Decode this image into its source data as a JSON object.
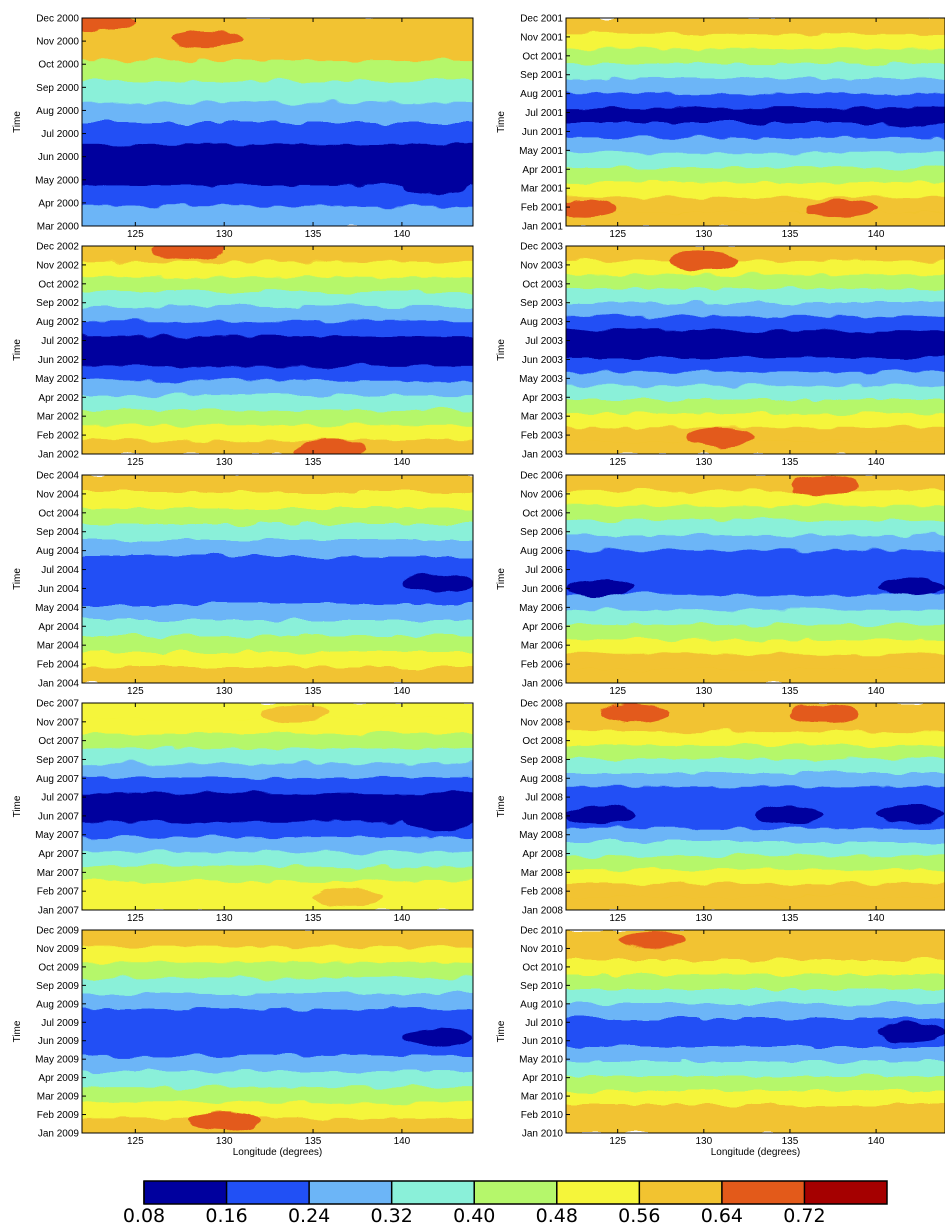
{
  "chart_data": {
    "type": "heatmap",
    "description": "Ten contour panels of a value against Longitude (x) and Time (y); discrete colour classes.",
    "xlim": [
      122,
      144
    ],
    "xticks": [
      125,
      130,
      135,
      140
    ],
    "x_label_bottom_row": "Longitude (degrees)",
    "ylabel": "Time",
    "colorbar": {
      "levels": [
        0.08,
        0.16,
        0.24,
        0.32,
        0.4,
        0.48,
        0.56,
        0.64,
        0.72
      ],
      "tick_labels": [
        "0.08",
        "0.16",
        "0.24",
        "0.32",
        "0.40",
        "0.48",
        "0.56",
        "0.64",
        "0.72"
      ],
      "colors": [
        "#00009e",
        "#2150f5",
        "#6cb5f7",
        "#8af0d9",
        "#b5f76b",
        "#f5f53a",
        "#f2c330",
        "#e35a1a",
        "#a50000"
      ]
    },
    "panels": [
      {
        "year": "2000",
        "ylabels": [
          "Mar 2000",
          "Apr 2000",
          "May 2000",
          "Jun 2000",
          "Jul 2000",
          "Aug 2000",
          "Sep 2000",
          "Oct 2000",
          "Nov 2000",
          "Dec 2000"
        ],
        "xlabel": "",
        "band_values": [
          0.28,
          0.2,
          0.12,
          0.12,
          0.2,
          0.28,
          0.36,
          0.44,
          0.6,
          0.6
        ],
        "blobs": [
          {
            "lon": 129,
            "t": 0.9,
            "v": 0.68
          },
          {
            "lon": 142,
            "t": 0.2,
            "v": 0.12
          },
          {
            "lon": 123,
            "t": 0.98,
            "v": 0.68
          }
        ]
      },
      {
        "year": "2001",
        "ylabels": [
          "Jan 2001",
          "Feb 2001",
          "Mar 2001",
          "Apr 2001",
          "May 2001",
          "Jun 2001",
          "Jul 2001",
          "Aug 2001",
          "Sep 2001",
          "Oct 2001",
          "Nov 2001",
          "Dec 2001"
        ],
        "xlabel": "",
        "band_values": [
          0.6,
          0.6,
          0.52,
          0.44,
          0.36,
          0.28,
          0.2,
          0.12,
          0.2,
          0.28,
          0.36,
          0.44,
          0.52,
          0.6
        ],
        "blobs": [
          {
            "lon": 123,
            "t": 0.08,
            "v": 0.68
          },
          {
            "lon": 138,
            "t": 0.08,
            "v": 0.68
          },
          {
            "lon": 142,
            "t": 0.52,
            "v": 0.12
          }
        ]
      },
      {
        "year": "2002",
        "ylabels": [
          "Jan 2002",
          "Feb 2002",
          "Mar 2002",
          "Apr 2002",
          "May 2002",
          "Jun 2002",
          "Jul 2002",
          "Aug 2002",
          "Sep 2002",
          "Oct 2002",
          "Nov 2002",
          "Dec 2002"
        ],
        "xlabel": "",
        "band_values": [
          0.6,
          0.52,
          0.44,
          0.36,
          0.28,
          0.2,
          0.12,
          0.12,
          0.2,
          0.28,
          0.36,
          0.44,
          0.52,
          0.6
        ],
        "blobs": [
          {
            "lon": 136,
            "t": 0.02,
            "v": 0.68
          },
          {
            "lon": 128,
            "t": 0.98,
            "v": 0.68
          }
        ]
      },
      {
        "year": "2003",
        "ylabels": [
          "Jan 2003",
          "Feb 2003",
          "Mar 2003",
          "Apr 2003",
          "May 2003",
          "Jun 2003",
          "Jul 2003",
          "Aug 2003",
          "Sep 2003",
          "Oct 2003",
          "Nov 2003",
          "Dec 2003"
        ],
        "xlabel": "",
        "band_values": [
          0.6,
          0.6,
          0.52,
          0.44,
          0.36,
          0.28,
          0.2,
          0.12,
          0.12,
          0.2,
          0.28,
          0.36,
          0.44,
          0.52,
          0.6
        ],
        "blobs": [
          {
            "lon": 131,
            "t": 0.08,
            "v": 0.68
          },
          {
            "lon": 130,
            "t": 0.93,
            "v": 0.68
          }
        ]
      },
      {
        "year": "2004",
        "ylabels": [
          "Jan 2004",
          "Feb 2004",
          "Mar 2004",
          "Apr 2004",
          "May 2004",
          "Jun 2004",
          "Jul 2004",
          "Aug 2004",
          "Sep 2004",
          "Oct 2004",
          "Nov 2004",
          "Dec 2004"
        ],
        "xlabel": "",
        "band_values": [
          0.6,
          0.52,
          0.44,
          0.36,
          0.28,
          0.2,
          0.2,
          0.2,
          0.28,
          0.36,
          0.44,
          0.52,
          0.6
        ],
        "blobs": [
          {
            "lon": 142,
            "t": 0.48,
            "v": 0.12
          }
        ]
      },
      {
        "year": "2006",
        "ylabels": [
          "Jan 2006",
          "Feb 2006",
          "Mar 2006",
          "Apr 2006",
          "May 2006",
          "Jun 2006",
          "Jul 2006",
          "Aug 2006",
          "Sep 2006",
          "Oct 2006",
          "Nov 2006",
          "Dec 2006"
        ],
        "xlabel": "",
        "band_values": [
          0.6,
          0.6,
          0.52,
          0.44,
          0.36,
          0.28,
          0.2,
          0.2,
          0.2,
          0.28,
          0.36,
          0.44,
          0.52,
          0.6
        ],
        "blobs": [
          {
            "lon": 124,
            "t": 0.46,
            "v": 0.12
          },
          {
            "lon": 142,
            "t": 0.46,
            "v": 0.12
          },
          {
            "lon": 137,
            "t": 0.95,
            "v": 0.68
          }
        ]
      },
      {
        "year": "2007",
        "ylabels": [
          "Jan 2007",
          "Feb 2007",
          "Mar 2007",
          "Apr 2007",
          "May 2007",
          "Jun 2007",
          "Jul 2007",
          "Aug 2007",
          "Sep 2007",
          "Oct 2007",
          "Nov 2007",
          "Dec 2007"
        ],
        "xlabel": "",
        "band_values": [
          0.52,
          0.52,
          0.44,
          0.36,
          0.28,
          0.2,
          0.12,
          0.12,
          0.2,
          0.28,
          0.36,
          0.44,
          0.52,
          0.52
        ],
        "blobs": [
          {
            "lon": 137,
            "t": 0.06,
            "v": 0.6
          },
          {
            "lon": 142,
            "t": 0.43,
            "v": 0.12
          },
          {
            "lon": 134,
            "t": 0.95,
            "v": 0.6
          }
        ]
      },
      {
        "year": "2008",
        "ylabels": [
          "Jan 2008",
          "Feb 2008",
          "Mar 2008",
          "Apr 2008",
          "May 2008",
          "Jun 2008",
          "Jul 2008",
          "Aug 2008",
          "Sep 2008",
          "Oct 2008",
          "Nov 2008",
          "Dec 2008"
        ],
        "xlabel": "",
        "band_values": [
          0.6,
          0.6,
          0.52,
          0.44,
          0.36,
          0.28,
          0.2,
          0.2,
          0.2,
          0.28,
          0.36,
          0.44,
          0.52,
          0.6,
          0.6
        ],
        "blobs": [
          {
            "lon": 126,
            "t": 0.95,
            "v": 0.68
          },
          {
            "lon": 137,
            "t": 0.95,
            "v": 0.68
          },
          {
            "lon": 124,
            "t": 0.46,
            "v": 0.12
          },
          {
            "lon": 142,
            "t": 0.46,
            "v": 0.12
          },
          {
            "lon": 135,
            "t": 0.46,
            "v": 0.12
          }
        ]
      },
      {
        "year": "2009",
        "ylabels": [
          "Jan 2009",
          "Feb 2009",
          "Mar 2009",
          "Apr 2009",
          "May 2009",
          "Jun 2009",
          "Jul 2009",
          "Aug 2009",
          "Sep 2009",
          "Oct 2009",
          "Nov 2009",
          "Dec 2009"
        ],
        "xlabel": "Longitude (degrees)",
        "band_values": [
          0.6,
          0.52,
          0.44,
          0.36,
          0.28,
          0.2,
          0.2,
          0.2,
          0.28,
          0.36,
          0.44,
          0.52,
          0.6
        ],
        "blobs": [
          {
            "lon": 142,
            "t": 0.47,
            "v": 0.12
          },
          {
            "lon": 130,
            "t": 0.06,
            "v": 0.68
          }
        ]
      },
      {
        "year": "2010",
        "ylabels": [
          "Jan 2010",
          "Feb 2010",
          "Mar 2010",
          "Apr 2010",
          "May 2010",
          "Jun 2010",
          "Jul 2010",
          "Aug 2010",
          "Sep 2010",
          "Oct 2010",
          "Nov 2010",
          "Dec 2010"
        ],
        "xlabel": "Longitude (degrees)",
        "band_values": [
          0.6,
          0.6,
          0.52,
          0.44,
          0.36,
          0.28,
          0.2,
          0.2,
          0.28,
          0.36,
          0.44,
          0.52,
          0.6,
          0.6
        ],
        "blobs": [
          {
            "lon": 127,
            "t": 0.95,
            "v": 0.68
          },
          {
            "lon": 142,
            "t": 0.5,
            "v": 0.12
          }
        ]
      }
    ]
  }
}
